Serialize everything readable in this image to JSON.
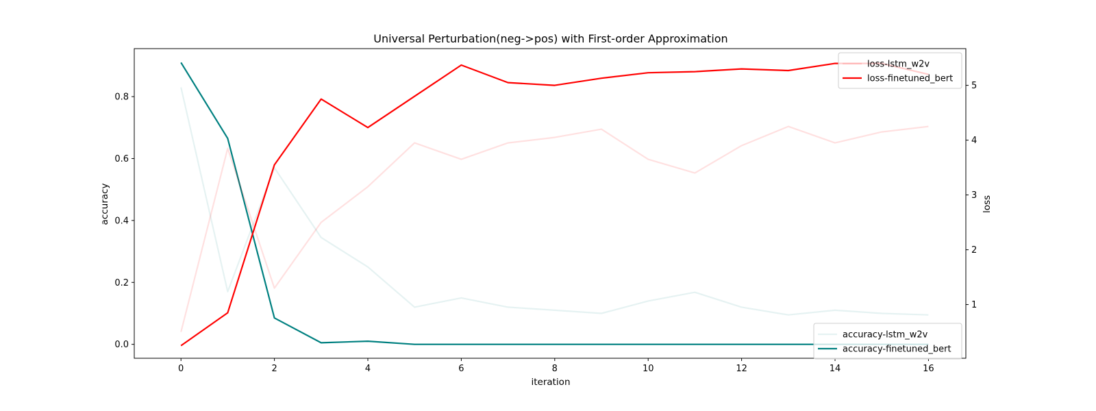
{
  "chart_data": {
    "type": "line",
    "title": "Universal Perturbation(neg->pos) with First-order Approximation",
    "xlabel": "iteration",
    "ylabel_left": "accuracy",
    "ylabel_right": "loss",
    "x": [
      0,
      1,
      2,
      3,
      4,
      5,
      6,
      7,
      8,
      9,
      10,
      11,
      12,
      13,
      14,
      15,
      16
    ],
    "xlim": [
      -1,
      16.8
    ],
    "xticks": [
      0,
      2,
      4,
      6,
      8,
      10,
      12,
      14,
      16
    ],
    "ylim_left": [
      -0.045,
      0.955
    ],
    "yticks_left": [
      "0.0",
      "0.2",
      "0.4",
      "0.6",
      "0.8"
    ],
    "yticks_left_values": [
      0.0,
      0.2,
      0.4,
      0.6,
      0.8
    ],
    "ylim_right": [
      0.02,
      5.67
    ],
    "yticks_right": [
      "1",
      "2",
      "3",
      "4",
      "5"
    ],
    "yticks_right_values": [
      1,
      2,
      3,
      4,
      5
    ],
    "grid": false,
    "loss_series": [
      {
        "name": "loss-lstm_w2v",
        "color": "#ff0000",
        "opacity": 0.12,
        "values": [
          0.5,
          3.85,
          1.3,
          2.5,
          3.15,
          3.95,
          3.65,
          3.95,
          4.05,
          4.2,
          3.65,
          3.4,
          3.9,
          4.25,
          3.95,
          4.15,
          4.25
        ]
      },
      {
        "name": "loss-finetuned_bert",
        "color": "#ff0000",
        "opacity": 1.0,
        "values": [
          0.25,
          0.85,
          3.55,
          4.75,
          4.23,
          4.8,
          5.37,
          5.05,
          5.0,
          5.13,
          5.23,
          5.25,
          5.3,
          5.27,
          5.4,
          5.4,
          5.2
        ]
      }
    ],
    "accuracy_series": [
      {
        "name": "accuracy-lstm_w2v",
        "color": "#008080",
        "opacity": 0.1,
        "values": [
          0.83,
          0.17,
          0.57,
          0.345,
          0.25,
          0.12,
          0.15,
          0.12,
          0.11,
          0.1,
          0.14,
          0.168,
          0.12,
          0.095,
          0.11,
          0.1,
          0.095
        ]
      },
      {
        "name": "accuracy-finetuned_bert",
        "color": "#008080",
        "opacity": 1.0,
        "values": [
          0.91,
          0.665,
          0.085,
          0.005,
          0.01,
          0.0,
          0.0,
          0.0,
          0.0,
          0.0,
          0.0,
          0.0,
          0.0,
          0.0,
          0.0,
          0.0,
          0.0
        ]
      }
    ],
    "legends": {
      "loss": {
        "placement": "top-right",
        "entries": [
          "loss-lstm_w2v",
          "loss-finetuned_bert"
        ]
      },
      "accuracy": {
        "placement": "bottom-right",
        "entries": [
          "accuracy-lstm_w2v",
          "accuracy-finetuned_bert"
        ]
      }
    }
  }
}
